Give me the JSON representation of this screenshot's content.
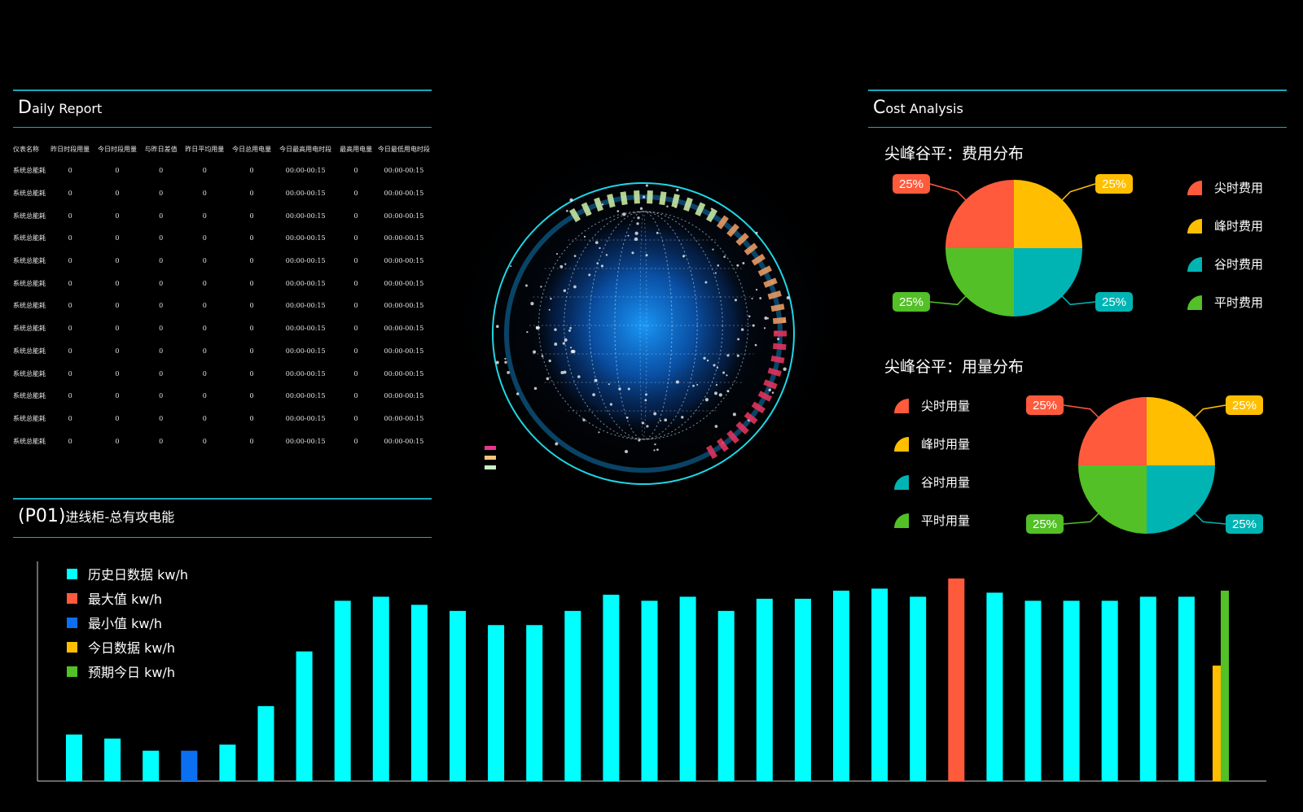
{
  "daily_report": {
    "title_cap": "D",
    "title_rest": "aily Report",
    "columns": [
      "仪表名称",
      "昨日时段用量",
      "今日时段用量",
      "与昨日差值",
      "昨日平均用量",
      "今日总用电量",
      "今日最高用电时段",
      "最高用电量",
      "今日最低用电时段"
    ],
    "rows": [
      [
        "系统总能耗",
        "0",
        "0",
        "0",
        "0",
        "0",
        "00:00-00:15",
        "0",
        "00:00-00:15"
      ],
      [
        "系统总能耗",
        "0",
        "0",
        "0",
        "0",
        "0",
        "00:00-00:15",
        "0",
        "00:00-00:15"
      ],
      [
        "系统总能耗",
        "0",
        "0",
        "0",
        "0",
        "0",
        "00:00-00:15",
        "0",
        "00:00-00:15"
      ],
      [
        "系统总能耗",
        "0",
        "0",
        "0",
        "0",
        "0",
        "00:00-00:15",
        "0",
        "00:00-00:15"
      ],
      [
        "系统总能耗",
        "0",
        "0",
        "0",
        "0",
        "0",
        "00:00-00:15",
        "0",
        "00:00-00:15"
      ],
      [
        "系统总能耗",
        "0",
        "0",
        "0",
        "0",
        "0",
        "00:00-00:15",
        "0",
        "00:00-00:15"
      ],
      [
        "系统总能耗",
        "0",
        "0",
        "0",
        "0",
        "0",
        "00:00-00:15",
        "0",
        "00:00-00:15"
      ],
      [
        "系统总能耗",
        "0",
        "0",
        "0",
        "0",
        "0",
        "00:00-00:15",
        "0",
        "00:00-00:15"
      ],
      [
        "系统总能耗",
        "0",
        "0",
        "0",
        "0",
        "0",
        "00:00-00:15",
        "0",
        "00:00-00:15"
      ],
      [
        "系统总能耗",
        "0",
        "0",
        "0",
        "0",
        "0",
        "00:00-00:15",
        "0",
        "00:00-00:15"
      ],
      [
        "系统总能耗",
        "0",
        "0",
        "0",
        "0",
        "0",
        "00:00-00:15",
        "0",
        "00:00-00:15"
      ],
      [
        "系统总能耗",
        "0",
        "0",
        "0",
        "0",
        "0",
        "00:00-00:15",
        "0",
        "00:00-00:15"
      ],
      [
        "系统总能耗",
        "0",
        "0",
        "0",
        "0",
        "0",
        "00:00-00:15",
        "0",
        "00:00-00:15"
      ]
    ]
  },
  "globe": {
    "legend": [
      "",
      "",
      ""
    ],
    "legend_colors": [
      "#e8358f",
      "#f3c77a",
      "#c9f0c8"
    ]
  },
  "cost_analysis": {
    "title_cap": "C",
    "title_rest": "ost Analysis"
  },
  "p01": {
    "title_code": "(P01)",
    "title_text": "进线柜-总有攻电能"
  },
  "colors": {
    "red": "#ff5a3c",
    "yellow": "#ffbf00",
    "cyan": "#00b4b4",
    "green": "#52c026",
    "bar": "#00ffff",
    "min": "#0a6ff0",
    "accent": "#18a9b8"
  },
  "chart_data": [
    {
      "type": "pie",
      "title": "尖峰谷平：费用分布",
      "slices": [
        {
          "name": "尖时费用",
          "value": 25,
          "label": "25%",
          "color": "#ff5a3c"
        },
        {
          "name": "峰时费用",
          "value": 25,
          "label": "25%",
          "color": "#ffbf00"
        },
        {
          "name": "谷时费用",
          "value": 25,
          "label": "25%",
          "color": "#00b4b4"
        },
        {
          "name": "平时费用",
          "value": 25,
          "label": "25%",
          "color": "#52c026"
        }
      ],
      "legend": "right"
    },
    {
      "type": "pie",
      "title": "尖峰谷平：用量分布",
      "slices": [
        {
          "name": "尖时用量",
          "value": 25,
          "label": "25%",
          "color": "#ff5a3c"
        },
        {
          "name": "峰时用量",
          "value": 25,
          "label": "25%",
          "color": "#ffbf00"
        },
        {
          "name": "谷时用量",
          "value": 25,
          "label": "25%",
          "color": "#00b4b4"
        },
        {
          "name": "平时用量",
          "value": 25,
          "label": "25%",
          "color": "#52c026"
        }
      ],
      "legend": "left"
    },
    {
      "type": "bar",
      "legend": "top-left",
      "ylim": [
        0,
        100
      ],
      "series": [
        {
          "name": "历史日数据 kw/h",
          "color": "#00ffff",
          "values": [
            23,
            21,
            15,
            15,
            18,
            37,
            64,
            89,
            91,
            87,
            84,
            77,
            77,
            84,
            92,
            89,
            91,
            84,
            90,
            90,
            94,
            95,
            91,
            100,
            93,
            89,
            89,
            89,
            91,
            91
          ]
        },
        {
          "name": "最大值 kw/h",
          "color": "#ff5a3c",
          "index": 23,
          "value": 100
        },
        {
          "name": "最小值 kw/h",
          "color": "#0a6ff0",
          "index": 3,
          "value": 15
        },
        {
          "name": "今日数据 kw/h",
          "color": "#ffbf00",
          "value": 57
        },
        {
          "name": "预期今日 kw/h",
          "color": "#52c026",
          "value": 94
        }
      ]
    }
  ]
}
